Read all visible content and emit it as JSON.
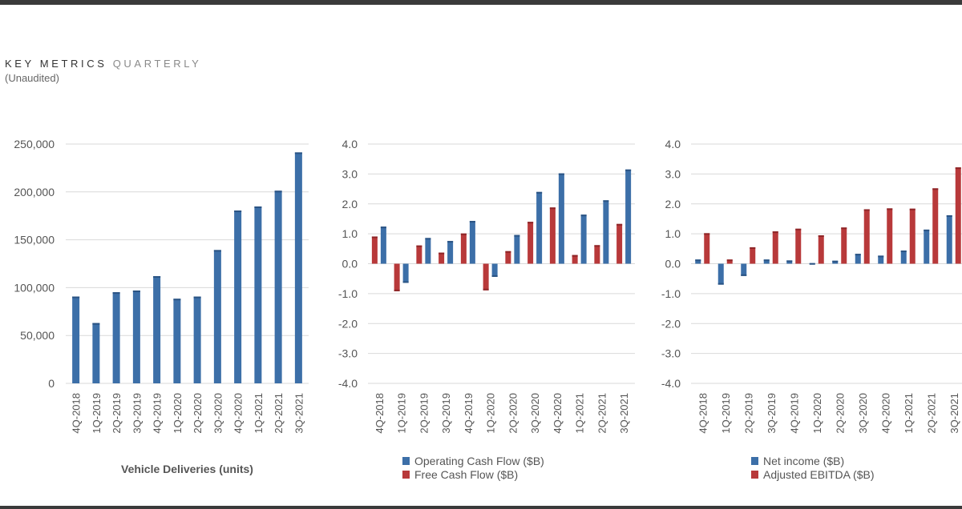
{
  "header": {
    "title_key": "KEY METRICS",
    "title_rest": "QUARTERLY",
    "subtitle": "(Unaudited)"
  },
  "colors": {
    "blue": "#3c6fa8",
    "blue_dark": "#2b5484",
    "red": "#b8393a",
    "red_dark": "#8e2628",
    "grid": "#d9d9d9",
    "axis_text": "#555555"
  },
  "chart_data": [
    {
      "type": "bar",
      "title": "",
      "xlabel": "Vehicle Deliveries (units)",
      "ylabel": "",
      "categories": [
        "4Q-2018",
        "1Q-2019",
        "2Q-2019",
        "3Q-2019",
        "4Q-2019",
        "1Q-2020",
        "2Q-2020",
        "3Q-2020",
        "4Q-2020",
        "1Q-2021",
        "2Q-2021",
        "3Q-2021"
      ],
      "series": [
        {
          "name": "Vehicle Deliveries (units)",
          "color": "#3c6fa8",
          "values": [
            90700,
            63000,
            95200,
            97000,
            112000,
            88400,
            90650,
            139300,
            180570,
            184800,
            201250,
            241300
          ]
        }
      ],
      "ylim": [
        0,
        250000
      ],
      "yticks": [
        "0",
        "50,000",
        "100,000",
        "150,000",
        "200,000",
        "250,000"
      ],
      "grid": true,
      "legend": "none"
    },
    {
      "type": "bar",
      "title": "",
      "xlabel": "",
      "ylabel": "",
      "categories": [
        "4Q-2018",
        "1Q-2019",
        "2Q-2019",
        "3Q-2019",
        "4Q-2019",
        "1Q-2020",
        "2Q-2020",
        "3Q-2020",
        "4Q-2020",
        "1Q-2021",
        "2Q-2021",
        "3Q-2021"
      ],
      "series": [
        {
          "name": "Free Cash Flow ($B)",
          "color": "#b8393a",
          "values": [
            0.91,
            -0.92,
            0.61,
            0.37,
            1.01,
            -0.89,
            0.42,
            1.4,
            1.88,
            0.29,
            0.62,
            1.33
          ]
        },
        {
          "name": "Operating Cash Flow ($B)",
          "color": "#3c6fa8",
          "values": [
            1.24,
            -0.64,
            0.86,
            0.76,
            1.43,
            -0.44,
            0.96,
            2.4,
            3.02,
            1.64,
            2.12,
            3.15
          ]
        }
      ],
      "legend_entries": [
        "Operating Cash Flow ($B)",
        "Free Cash Flow ($B)"
      ],
      "ylim": [
        -4.0,
        4.0
      ],
      "yticks": [
        "-4.0",
        "-3.0",
        "-2.0",
        "-1.0",
        "0.0",
        "1.0",
        "2.0",
        "3.0",
        "4.0"
      ],
      "grid": true,
      "legend": "bottom"
    },
    {
      "type": "bar",
      "title": "",
      "xlabel": "",
      "ylabel": "",
      "categories": [
        "4Q-2018",
        "1Q-2019",
        "2Q-2019",
        "3Q-2019",
        "4Q-2019",
        "1Q-2020",
        "2Q-2020",
        "3Q-2020",
        "4Q-2020",
        "1Q-2021",
        "2Q-2021",
        "3Q-2021"
      ],
      "series": [
        {
          "name": "Net income ($B)",
          "color": "#3c6fa8",
          "values": [
            0.14,
            -0.7,
            -0.41,
            0.14,
            0.11,
            0.02,
            0.1,
            0.33,
            0.27,
            0.44,
            1.14,
            1.62
          ]
        },
        {
          "name": "Adjusted EBITDA ($B)",
          "color": "#b8393a",
          "values": [
            1.02,
            0.14,
            0.55,
            1.08,
            1.17,
            0.95,
            1.21,
            1.82,
            1.85,
            1.84,
            2.52,
            3.22
          ]
        }
      ],
      "legend_entries": [
        "Net income ($B)",
        "Adjusted EBITDA ($B)"
      ],
      "ylim": [
        -4.0,
        4.0
      ],
      "yticks": [
        "-4.0",
        "-3.0",
        "-2.0",
        "-1.0",
        "0.0",
        "1.0",
        "2.0",
        "3.0",
        "4.0"
      ],
      "grid": true,
      "legend": "bottom"
    }
  ]
}
